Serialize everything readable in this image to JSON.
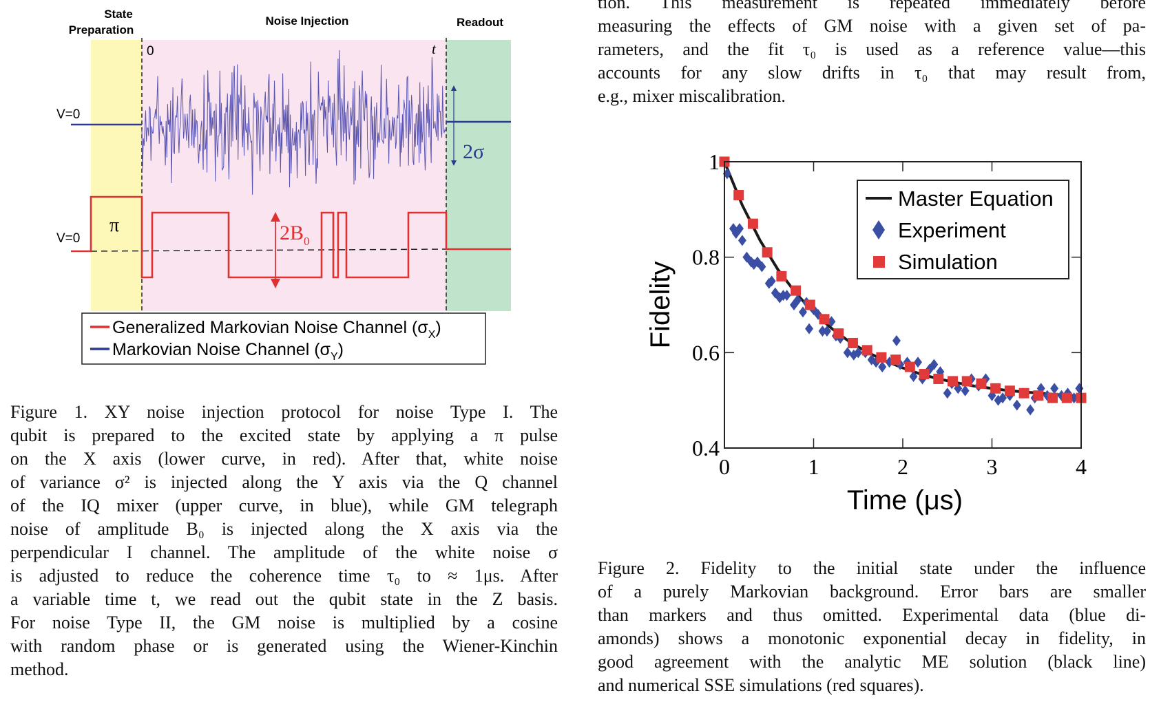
{
  "top_text": {
    "lines": [
      "tion.  This measurement is repeated immediately before",
      "measuring the effects of GM noise with a given set of pa-",
      "rameters, and the fit τ₀ is used as a reference value—this",
      "accounts for any slow drifts in τ₀ that may result from,",
      "e.g., mixer miscalibration."
    ]
  },
  "figure1": {
    "phases": {
      "prep": "State Preparation",
      "prep_line1": "State",
      "prep_line2": "Preparation",
      "noise": "Noise Injection",
      "readout": "Readout"
    },
    "time_start": "0",
    "time_end": "t",
    "v0_upper": "V=0",
    "v0_lower": "V=0",
    "pi_label": "π",
    "sigma_label": "2σ",
    "b0_label": "2B",
    "b0_sub": "0",
    "legend": [
      {
        "text": "Generalized Markovian Noise Channel (σ",
        "sub": "X",
        "close": ")",
        "color": "#e03030"
      },
      {
        "text": "Markovian Noise Channel (σ",
        "sub": "Y",
        "close": ")",
        "color": "#2b3990"
      }
    ],
    "colors": {
      "prep": "#fdf8b8",
      "noise": "#f9e4f0",
      "readout": "#c0e3cb",
      "red": "#e03030",
      "blue": "#2b3990",
      "noise_trace": "#5a55b0"
    },
    "caption_lines": [
      "Figure 1.  XY noise injection protocol for noise Type I. The",
      "qubit is prepared to the excited state by applying a π pulse",
      "on the X axis (lower curve, in red).  After that, white noise",
      "of variance σ² is injected along the Y axis via the Q channel",
      "of the IQ mixer (upper curve, in blue), while GM telegraph",
      "noise of amplitude B₀ is injected along the X axis via the",
      "perpendicular I channel. The amplitude of the white noise σ",
      "is adjusted to reduce the coherence time τ₀ to ≈ 1μs.  After",
      "a variable time t, we read out the qubit state in the Z basis.",
      "For noise Type II, the GM noise is multiplied by a cosine",
      "with random phase or is generated using the Wiener-Kinchin",
      "method."
    ]
  },
  "chart_data": {
    "type": "scatter",
    "xlabel": "Time (μs)",
    "ylabel": "Fidelity",
    "xlim": [
      0,
      4
    ],
    "ylim": [
      0.4,
      1
    ],
    "xticks": [
      "0",
      "1",
      "2",
      "3",
      "4"
    ],
    "yticks": [
      "0.4",
      "0.6",
      "0.8",
      "1"
    ],
    "grid": false,
    "legend_position": "top-right",
    "series": [
      {
        "name": "Master Equation",
        "kind": "line",
        "color": "#1a1a1a",
        "x": [
          0,
          0.2,
          0.4,
          0.6,
          0.8,
          1.0,
          1.2,
          1.4,
          1.6,
          1.8,
          2.0,
          2.2,
          2.4,
          2.6,
          2.8,
          3.0,
          3.2,
          3.4,
          3.6,
          3.8,
          4.0
        ],
        "y": [
          1,
          0.909,
          0.835,
          0.774,
          0.725,
          0.684,
          0.651,
          0.623,
          0.601,
          0.583,
          0.568,
          0.555,
          0.545,
          0.537,
          0.53,
          0.525,
          0.52,
          0.517,
          0.514,
          0.511,
          0.509
        ]
      },
      {
        "name": "Experiment",
        "kind": "diamond",
        "color": "#3a4fa3",
        "x": [
          0.03,
          0.1,
          0.13,
          0.17,
          0.2,
          0.25,
          0.3,
          0.33,
          0.37,
          0.42,
          0.5,
          0.53,
          0.57,
          0.62,
          0.66,
          0.7,
          0.78,
          0.82,
          0.88,
          0.92,
          0.95,
          1.0,
          1.05,
          1.1,
          1.15,
          1.2,
          1.25,
          1.3,
          1.38,
          1.45,
          1.5,
          1.58,
          1.65,
          1.7,
          1.77,
          1.85,
          1.93,
          1.97,
          2.05,
          2.12,
          2.17,
          2.22,
          2.3,
          2.35,
          2.42,
          2.5,
          2.55,
          2.62,
          2.7,
          2.77,
          2.85,
          2.93,
          3.0,
          3.07,
          3.12,
          3.2,
          3.28,
          3.35,
          3.43,
          3.48,
          3.55,
          3.62,
          3.7,
          3.78,
          3.85,
          3.92,
          3.98
        ],
        "y": [
          0.975,
          0.86,
          0.85,
          0.86,
          0.835,
          0.8,
          0.79,
          0.785,
          0.79,
          0.78,
          0.745,
          0.75,
          0.725,
          0.715,
          0.72,
          0.72,
          0.7,
          0.71,
          0.685,
          0.705,
          0.65,
          0.69,
          0.68,
          0.645,
          0.645,
          0.665,
          0.635,
          0.63,
          0.6,
          0.595,
          0.6,
          0.6,
          0.585,
          0.58,
          0.57,
          0.58,
          0.625,
          0.575,
          0.58,
          0.55,
          0.58,
          0.545,
          0.565,
          0.575,
          0.56,
          0.515,
          0.535,
          0.525,
          0.52,
          0.545,
          0.53,
          0.545,
          0.51,
          0.5,
          0.505,
          0.51,
          0.49,
          0.515,
          0.48,
          0.505,
          0.525,
          0.51,
          0.525,
          0.51,
          0.515,
          0.505,
          0.525
        ]
      },
      {
        "name": "Simulation",
        "kind": "square",
        "color": "#e03a3a",
        "x": [
          0,
          0.16,
          0.32,
          0.48,
          0.64,
          0.8,
          0.96,
          1.12,
          1.28,
          1.44,
          1.6,
          1.76,
          1.92,
          2.08,
          2.24,
          2.4,
          2.56,
          2.72,
          2.88,
          3.04,
          3.2,
          3.36,
          3.52,
          3.68,
          3.84,
          4.0
        ],
        "y": [
          1.0,
          0.93,
          0.87,
          0.81,
          0.76,
          0.73,
          0.7,
          0.67,
          0.64,
          0.62,
          0.605,
          0.59,
          0.585,
          0.57,
          0.555,
          0.545,
          0.54,
          0.54,
          0.535,
          0.525,
          0.52,
          0.515,
          0.51,
          0.505,
          0.505,
          0.505
        ]
      }
    ]
  },
  "figure2": {
    "caption_lines": [
      "Figure 2.  Fidelity to the initial state under the influence",
      "of a purely Markovian background.  Error bars are smaller",
      "than markers and thus omitted. Experimental data (blue di-",
      "amonds) shows a monotonic exponential decay in fidelity, in",
      "good agreement with the analytic ME solution (black line)",
      "and numerical SSE simulations (red squares)."
    ]
  }
}
